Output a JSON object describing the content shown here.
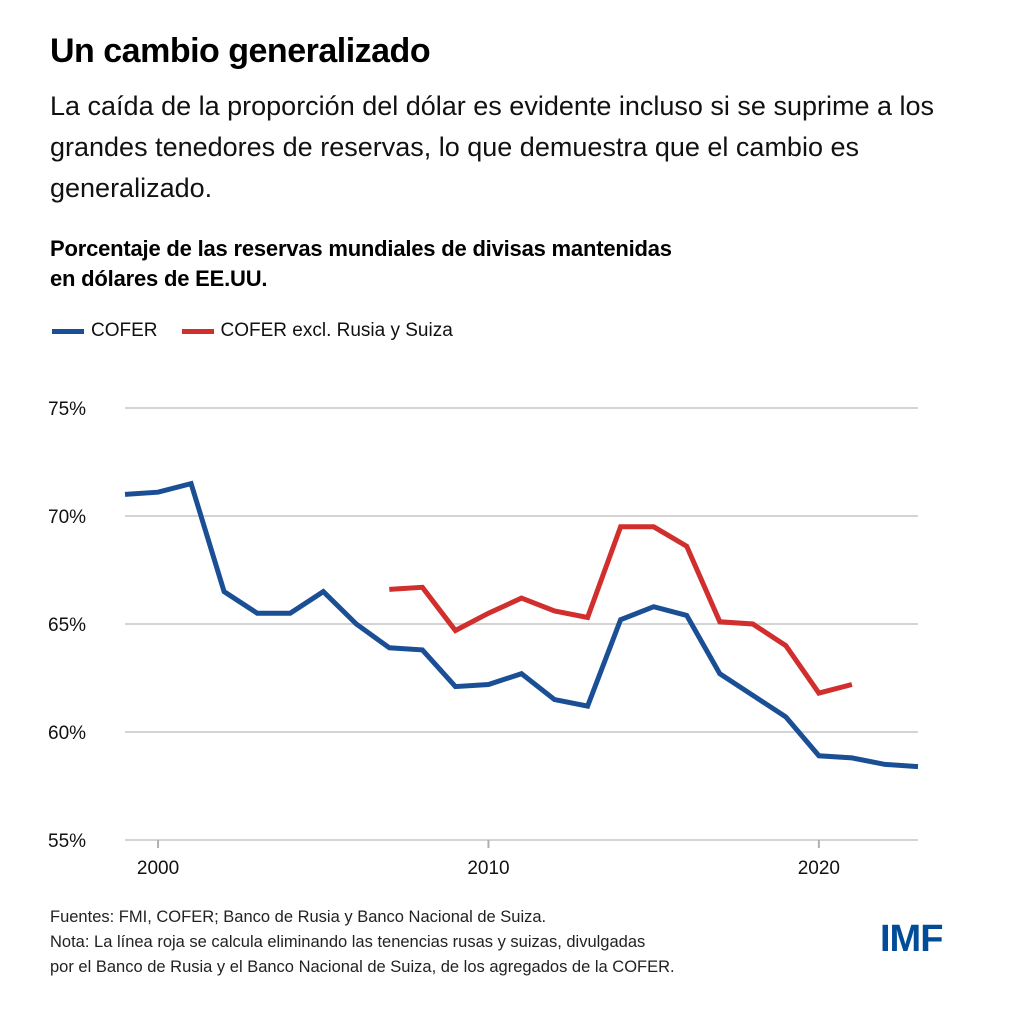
{
  "header": {
    "title": "Un cambio generalizado",
    "subtitle": "La caída de la proporción del dólar es evidente incluso si se suprime a los grandes tenedores de reservas, lo que demuestra que el cambio es generalizado."
  },
  "chart_data": {
    "type": "line",
    "title": "Porcentaje de las reservas mundiales de divisas mantenidas en dólares de EE.UU.",
    "title_line1": "Porcentaje de las reservas mundiales de divisas mantenidas",
    "title_line2": "en dólares de EE.UU.",
    "xlabel": "",
    "ylabel": "",
    "xlim": [
      1999,
      2023
    ],
    "ylim": [
      55,
      75
    ],
    "x_ticks": [
      2000,
      2010,
      2020
    ],
    "x_tick_labels": [
      "2000",
      "2010",
      "2020"
    ],
    "y_ticks": [
      55,
      60,
      65,
      70,
      75
    ],
    "y_tick_labels": [
      "55%",
      "60%",
      "65%",
      "70%",
      "75%"
    ],
    "grid": "horizontal",
    "legend_position": "top-left",
    "series": [
      {
        "name": "COFER",
        "color": "#1a4f96",
        "x": [
          1999,
          2000,
          2001,
          2002,
          2003,
          2004,
          2005,
          2006,
          2007,
          2008,
          2009,
          2010,
          2011,
          2012,
          2013,
          2014,
          2015,
          2016,
          2017,
          2018,
          2019,
          2020,
          2021,
          2022,
          2023
        ],
        "values": [
          71.0,
          71.1,
          71.5,
          66.5,
          65.5,
          65.5,
          66.5,
          65.0,
          63.9,
          63.8,
          62.1,
          62.2,
          62.7,
          61.5,
          61.2,
          65.2,
          65.8,
          65.4,
          62.7,
          61.7,
          60.7,
          58.9,
          58.8,
          58.5,
          58.4
        ]
      },
      {
        "name": "COFER excl. Rusia y Suiza",
        "color": "#d12e2e",
        "x": [
          2007,
          2008,
          2009,
          2010,
          2011,
          2012,
          2013,
          2014,
          2015,
          2016,
          2017,
          2018,
          2019,
          2020,
          2021
        ],
        "values": [
          66.6,
          66.7,
          64.7,
          65.5,
          66.2,
          65.6,
          65.3,
          69.5,
          69.5,
          68.6,
          65.1,
          65.0,
          64.0,
          61.8,
          62.2
        ]
      }
    ]
  },
  "footer": {
    "sources": "Fuentes: FMI, COFER; Banco de Rusia y Banco Nacional de Suiza.",
    "note_line1": "Nota: La línea roja se calcula eliminando las tenencias rusas y suizas, divulgadas",
    "note_line2": "por el Banco de Rusia y el Banco Nacional de Suiza, de los agregados de la COFER.",
    "logo": "IMF"
  }
}
